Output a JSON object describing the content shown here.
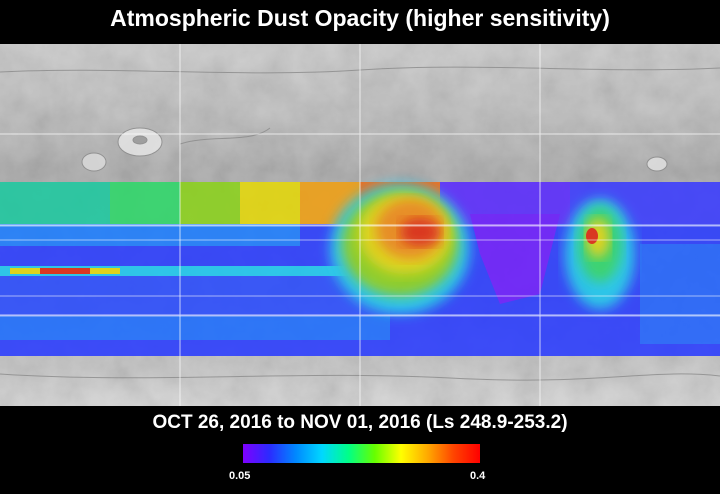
{
  "title": "Atmospheric Dust Opacity (higher sensitivity)",
  "date_range": "OCT 26, 2016 to NOV 01, 2016 (Ls 248.9-253.2)",
  "colorbar": {
    "min_label": "0.05",
    "max_label": "0.4",
    "colors": [
      "#7f00ff",
      "#2b2bff",
      "#0088ff",
      "#00d8ff",
      "#00ff88",
      "#66ff00",
      "#ffff00",
      "#ffaa00",
      "#ff4400",
      "#ff0000"
    ]
  },
  "map": {
    "base_colors": {
      "light": "#d0d0d0",
      "mid": "#b4b4b4",
      "dark": "#9a9a9a"
    },
    "overlay_colors": {
      "violet": "#6a1bff",
      "blue": "#2a3cff",
      "lightblue": "#1c7dff",
      "cyan": "#1ec9f0",
      "green": "#2fd86a",
      "yellowgreen": "#8cd21c",
      "yellow": "#e5d80a",
      "orange": "#f08a14",
      "red": "#e0280f"
    }
  }
}
